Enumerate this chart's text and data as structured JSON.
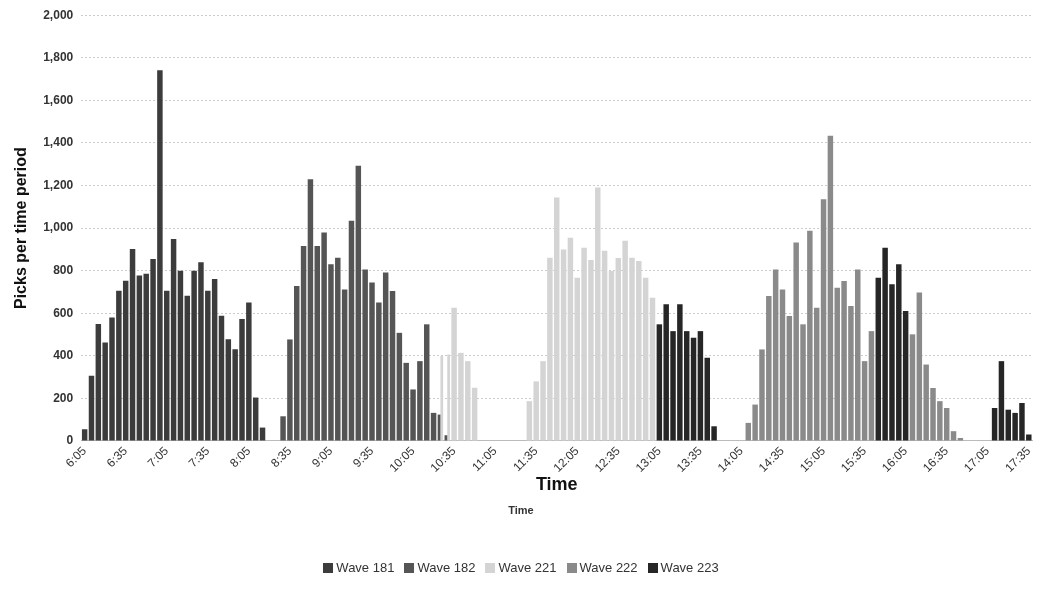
{
  "chart_data": {
    "type": "bar",
    "ylabel": "Picks per time period",
    "xlabel": "Time",
    "annotations": [
      "Time"
    ],
    "categories": [
      "6:05",
      null,
      null,
      null,
      null,
      null,
      "6:35",
      null,
      null,
      null,
      null,
      null,
      "7:05",
      null,
      null,
      null,
      null,
      null,
      "7:35",
      null,
      null,
      null,
      null,
      null,
      "8:05",
      null,
      null,
      null,
      null,
      null,
      "8:35",
      null,
      null,
      null,
      null,
      null,
      "9:05",
      null,
      null,
      null,
      null,
      null,
      "9:35",
      null,
      null,
      null,
      null,
      null,
      "10:05",
      null,
      null,
      null,
      null,
      null,
      "10:35",
      null,
      null,
      null,
      null,
      null,
      "11:05",
      null,
      null,
      null,
      null,
      null,
      "11:35",
      null,
      null,
      null,
      null,
      null,
      "12:05",
      null,
      null,
      null,
      null,
      null,
      "12:35",
      null,
      null,
      null,
      null,
      null,
      "13:05",
      null,
      null,
      null,
      null,
      null,
      "13:35",
      null,
      null,
      null,
      null,
      null,
      "14:05",
      null,
      null,
      null,
      null,
      null,
      "14:35",
      null,
      null,
      null,
      null,
      null,
      "15:05",
      null,
      null,
      null,
      null,
      null,
      "15:35",
      null,
      null,
      null,
      null,
      null,
      "16:05",
      null,
      null,
      null,
      null,
      null,
      "16:35",
      null,
      null,
      null,
      null,
      null,
      "17:05",
      null,
      null,
      null,
      null,
      null,
      "17:35"
    ],
    "series": [
      {
        "name": "Wave 181",
        "color": "#3c3c3c",
        "values": [
          55,
          306,
          549,
          463,
          580,
          706,
          753,
          902,
          777,
          785,
          855,
          1742,
          706,
          949,
          800,
          682,
          800,
          840,
          706,
          761,
          588,
          478,
          431,
          573,
          651,
          204,
          63,
          null,
          null,
          null,
          null,
          null,
          null,
          null,
          null,
          null,
          null,
          null,
          null,
          null,
          null,
          null,
          null,
          null,
          null,
          null,
          null,
          null,
          null,
          null,
          null,
          null,
          null,
          null,
          null,
          null,
          null,
          null,
          null,
          null,
          null,
          null,
          null,
          null,
          null,
          null,
          null,
          null,
          null,
          null,
          null,
          null,
          null,
          null,
          null,
          null,
          null,
          null,
          null,
          null,
          null,
          null,
          null,
          null,
          null,
          null,
          null,
          null,
          null,
          null,
          null,
          null,
          null,
          null,
          null,
          null,
          null,
          null,
          null,
          null,
          null,
          null,
          null,
          null,
          null,
          null,
          null,
          null,
          null,
          null,
          null,
          null,
          null,
          null,
          null,
          null,
          null,
          null,
          null,
          null,
          null,
          null,
          null,
          null,
          null,
          null,
          null,
          null,
          null,
          null,
          null,
          null,
          null,
          null,
          null,
          null,
          null,
          null,
          null
        ]
      },
      {
        "name": "Wave 182",
        "color": "#555555",
        "values": [
          null,
          null,
          null,
          null,
          null,
          null,
          null,
          null,
          null,
          null,
          null,
          null,
          null,
          null,
          null,
          null,
          null,
          null,
          null,
          null,
          null,
          null,
          null,
          null,
          null,
          null,
          null,
          null,
          null,
          116,
          477,
          728,
          916,
          1230,
          916,
          979,
          830,
          861,
          712,
          1034,
          1293,
          806,
          744,
          650,
          791,
          704,
          508,
          367,
          242,
          375,
          548,
          132,
          124,
          27,
          null,
          null,
          null,
          null,
          null,
          null,
          null,
          null,
          null,
          null,
          null,
          null,
          null,
          null,
          null,
          null,
          null,
          null,
          null,
          null,
          null,
          null,
          null,
          null,
          null,
          null,
          null,
          null,
          null,
          null,
          null,
          null,
          null,
          null,
          null,
          null,
          null,
          null,
          null,
          null,
          null,
          null,
          null,
          null,
          null,
          null,
          null,
          null,
          null,
          null,
          null,
          null,
          null,
          null,
          null,
          null,
          null,
          null,
          null,
          null,
          null,
          null,
          null,
          null,
          null,
          null,
          null,
          null,
          null,
          null,
          null,
          null,
          null,
          null,
          null,
          null,
          null,
          null,
          null,
          null,
          null,
          null,
          null,
          null,
          null
        ]
      },
      {
        "name": "Wave 221",
        "color": "#d4d4d4",
        "values": [
          null,
          null,
          null,
          null,
          null,
          null,
          null,
          null,
          null,
          null,
          null,
          null,
          null,
          null,
          null,
          null,
          null,
          null,
          null,
          null,
          null,
          null,
          null,
          null,
          null,
          null,
          null,
          null,
          null,
          null,
          null,
          null,
          null,
          null,
          null,
          null,
          null,
          null,
          null,
          null,
          null,
          null,
          null,
          null,
          null,
          null,
          null,
          null,
          null,
          null,
          null,
          null,
          400,
          406,
          626,
          414,
          375,
          250,
          null,
          null,
          null,
          null,
          null,
          null,
          null,
          187,
          280,
          375,
          861,
          1144,
          900,
          955,
          767,
          908,
          850,
          1191,
          893,
          799,
          860,
          940,
          861,
          846,
          767,
          673,
          null,
          null,
          null,
          null,
          null,
          null,
          null,
          null,
          null,
          null,
          null,
          null,
          null,
          null,
          null,
          null,
          null,
          null,
          null,
          null,
          null,
          null,
          null,
          null,
          null,
          null,
          null,
          null,
          null,
          null,
          null,
          null,
          null,
          null,
          null,
          null,
          null,
          null,
          null,
          null,
          null,
          null,
          null,
          null,
          null,
          null,
          null,
          null,
          null,
          null,
          null,
          null,
          null,
          null,
          null
        ]
      },
      {
        "name": "Wave 222",
        "color": "#8a8a8a",
        "values": [
          null,
          null,
          null,
          null,
          null,
          null,
          null,
          null,
          null,
          null,
          null,
          null,
          null,
          null,
          null,
          null,
          null,
          null,
          null,
          null,
          null,
          null,
          null,
          null,
          null,
          null,
          null,
          null,
          null,
          null,
          null,
          null,
          null,
          null,
          null,
          null,
          null,
          null,
          null,
          null,
          null,
          null,
          null,
          null,
          null,
          null,
          null,
          null,
          null,
          null,
          null,
          null,
          null,
          null,
          null,
          null,
          null,
          null,
          null,
          null,
          null,
          null,
          null,
          null,
          null,
          null,
          null,
          null,
          null,
          null,
          null,
          null,
          null,
          null,
          null,
          null,
          null,
          null,
          null,
          null,
          null,
          null,
          null,
          null,
          null,
          null,
          null,
          null,
          null,
          null,
          null,
          null,
          null,
          null,
          null,
          null,
          null,
          85,
          171,
          430,
          681,
          806,
          712,
          587,
          932,
          548,
          987,
          626,
          1136,
          1434,
          720,
          752,
          634,
          806,
          375,
          516,
          null,
          null,
          null,
          null,
          null,
          501,
          697,
          359,
          249,
          187,
          155,
          46,
          14,
          null,
          null,
          null,
          null,
          null,
          null,
          null,
          null,
          null,
          null
        ]
      },
      {
        "name": "Wave 223",
        "color": "#262626",
        "values": [
          null,
          null,
          null,
          null,
          null,
          null,
          null,
          null,
          null,
          null,
          null,
          null,
          null,
          null,
          null,
          null,
          null,
          null,
          null,
          null,
          null,
          null,
          null,
          null,
          null,
          null,
          null,
          null,
          null,
          null,
          null,
          null,
          null,
          null,
          null,
          null,
          null,
          null,
          null,
          null,
          null,
          null,
          null,
          null,
          null,
          null,
          null,
          null,
          null,
          null,
          null,
          null,
          null,
          null,
          null,
          null,
          null,
          null,
          null,
          null,
          null,
          null,
          null,
          null,
          null,
          null,
          null,
          null,
          null,
          null,
          null,
          null,
          null,
          null,
          null,
          null,
          null,
          null,
          null,
          null,
          null,
          null,
          null,
          null,
          548,
          642,
          516,
          642,
          516,
          485,
          516,
          391,
          69,
          null,
          null,
          null,
          null,
          null,
          null,
          null,
          null,
          null,
          null,
          null,
          null,
          null,
          null,
          null,
          null,
          null,
          null,
          null,
          null,
          null,
          null,
          null,
          767,
          908,
          736,
          830,
          610,
          null,
          null,
          null,
          null,
          null,
          null,
          null,
          null,
          null,
          null,
          null,
          null,
          155,
          375,
          147,
          132,
          179,
          30
        ]
      }
    ],
    "ylim": [
      0,
      2000
    ],
    "yticks": [
      0,
      200,
      400,
      600,
      800,
      {
        "value": 1000,
        "label": "1,000"
      },
      {
        "value": 1200,
        "label": "1,200"
      },
      {
        "value": 1400,
        "label": "1,400"
      },
      {
        "value": 1600,
        "label": "1,600"
      },
      {
        "value": 1800,
        "label": "1,800"
      },
      {
        "value": 2000,
        "label": "2,000"
      }
    ],
    "grid": "y",
    "legend": "bottom"
  }
}
